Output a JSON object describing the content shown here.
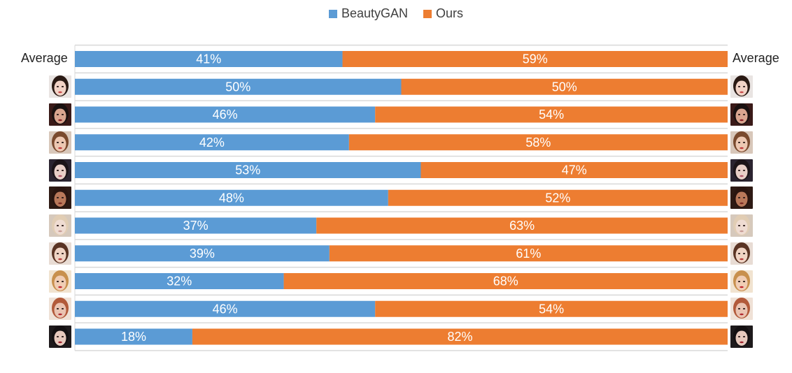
{
  "legend": {
    "beautygan_label": "BeautyGAN",
    "ours_label": "Ours"
  },
  "left_average_label": "Average",
  "right_average_label": "Average",
  "colors": {
    "beautygan": "#5B9BD5",
    "ours": "#ED7D31",
    "grid": "#D9D9D9",
    "bar_text": "#FFFFFF"
  },
  "chart_data": {
    "type": "bar",
    "orientation": "horizontal",
    "stacked": "100%",
    "categories": [
      "Average",
      "Face 1",
      "Face 2",
      "Face 3",
      "Face 4",
      "Face 5",
      "Face 6",
      "Face 7",
      "Face 8",
      "Face 9",
      "Face 10"
    ],
    "series": [
      {
        "name": "BeautyGAN",
        "values": [
          41,
          50,
          46,
          42,
          53,
          48,
          37,
          39,
          32,
          46,
          18
        ],
        "labels": [
          "41%",
          "50%",
          "46%",
          "42%",
          "53%",
          "48%",
          "37%",
          "39%",
          "32%",
          "46%",
          "18%"
        ]
      },
      {
        "name": "Ours",
        "values": [
          59,
          50,
          54,
          58,
          47,
          52,
          63,
          61,
          68,
          54,
          82
        ],
        "labels": [
          "59%",
          "50%",
          "54%",
          "58%",
          "47%",
          "52%",
          "63%",
          "61%",
          "68%",
          "54%",
          "82%"
        ]
      }
    ],
    "xlim": [
      0,
      100
    ],
    "grid": true,
    "legend_position": "top-center"
  },
  "faces": [
    {
      "skin": "#f2d3c6",
      "hair": "#2a1a14",
      "lips": "#c84a4a",
      "bg": "#e9e4e2"
    },
    {
      "skin": "#d9a58f",
      "hair": "#1a1110",
      "lips": "#8a1e24",
      "bg": "#3a1a18"
    },
    {
      "skin": "#edc8b2",
      "hair": "#7a4a2e",
      "lips": "#c0393b",
      "bg": "#d8c7ba"
    },
    {
      "skin": "#e9cfc7",
      "hair": "#1c1418",
      "lips": "#b4566a",
      "bg": "#2b2430"
    },
    {
      "skin": "#b9785a",
      "hair": "#2a1510",
      "lips": "#7b2a24",
      "bg": "#2e1a14"
    },
    {
      "skin": "#efdcd2",
      "hair": "#e1cdb4",
      "lips": "#c79a94",
      "bg": "#d6c9bc"
    },
    {
      "skin": "#f0d4c4",
      "hair": "#5a3424",
      "lips": "#b73a3a",
      "bg": "#e8dcd4"
    },
    {
      "skin": "#f0cdb5",
      "hair": "#c8904e",
      "lips": "#c2222c",
      "bg": "#f1e3d0"
    },
    {
      "skin": "#eac3b1",
      "hair": "#b25a3a",
      "lips": "#b0262e",
      "bg": "#efe1d6"
    },
    {
      "skin": "#e7c9bd",
      "hair": "#141012",
      "lips": "#9e1f2b",
      "bg": "#1e1a1c"
    }
  ]
}
